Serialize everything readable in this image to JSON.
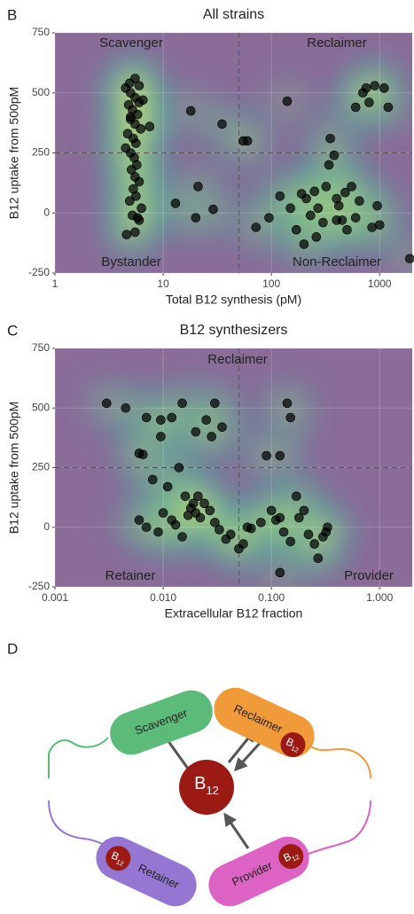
{
  "chart_data": [
    {
      "type": "scatter",
      "panel": "B",
      "title": "All strains",
      "x_label": "Total B12 synthesis (pM)",
      "y_label": "B12 uptake from 500pM",
      "xlog": true,
      "xlim": [
        1,
        2000
      ],
      "xticks": [
        1,
        10,
        100,
        1000
      ],
      "ylim": [
        -250,
        750
      ],
      "yticks": [
        -250,
        0,
        250,
        500,
        750
      ],
      "vline": 50,
      "hline": 250,
      "color": "#000000",
      "quadrant_labels": [
        "Scavenger",
        "Reclaimer",
        "Bystander",
        "Non-Reclaimer"
      ],
      "x": [
        4.5,
        5,
        5.5,
        6,
        4.8,
        5.2,
        5.8,
        5,
        5.5,
        6.2,
        4.7,
        5.3,
        5.6,
        4.5,
        5,
        5.4,
        5.7,
        5.1,
        5.5,
        6,
        5.3,
        5.6,
        4.9,
        6.3,
        5.2,
        5.8,
        6,
        5.5,
        4.6,
        5,
        6,
        5.5,
        4.9,
        6.5,
        7.5,
        13,
        18,
        20,
        21,
        29,
        35,
        55,
        60,
        72,
        95,
        120,
        140,
        150,
        170,
        190,
        210,
        230,
        250,
        260,
        270,
        300,
        320,
        340,
        350,
        380,
        400,
        420,
        450,
        480,
        500,
        550,
        600,
        650,
        700,
        750,
        800,
        850,
        900,
        950,
        1000,
        1100,
        1200,
        1900,
        600,
        200,
        400
      ],
      "y": [
        520,
        500,
        480,
        460,
        450,
        430,
        410,
        390,
        370,
        350,
        330,
        310,
        290,
        270,
        250,
        230,
        200,
        180,
        150,
        130,
        100,
        70,
        50,
        20,
        -10,
        -20,
        -30,
        -80,
        -90,
        400,
        530,
        560,
        540,
        470,
        360,
        40,
        425,
        -20,
        110,
        15,
        370,
        300,
        300,
        -60,
        -20,
        70,
        465,
        20,
        -70,
        80,
        60,
        -10,
        90,
        -100,
        20,
        -40,
        110,
        200,
        310,
        240,
        60,
        30,
        -30,
        85,
        -70,
        110,
        -20,
        50,
        500,
        520,
        460,
        -60,
        530,
        30,
        -50,
        520,
        440,
        -190,
        440,
        -130,
        -30
      ]
    },
    {
      "type": "scatter",
      "panel": "C",
      "title": "B12 synthesizers",
      "x_label": "Extracellular B12 fraction",
      "y_label": "B12 uptake from 500pM",
      "xlog": true,
      "xlim": [
        0.001,
        2
      ],
      "xticks": [
        0.001,
        {
          "value": 0.01,
          "label": "0.010"
        },
        {
          "value": 0.1,
          "label": "0.100"
        },
        {
          "value": 1,
          "label": "1.000"
        }
      ],
      "ylim": [
        -250,
        750
      ],
      "yticks": [
        -250,
        0,
        250,
        500,
        750
      ],
      "vline": 0.05,
      "hline": 250,
      "color": "#000000",
      "quadrant_labels": [
        "Reclaimer",
        "Retainer",
        "Provider"
      ],
      "x": [
        0.003,
        0.0045,
        0.007,
        0.0095,
        0.012,
        0.015,
        0.02,
        0.025,
        0.03,
        0.035,
        0.028,
        0.0095,
        0.006,
        0.0065,
        0.008,
        0.011,
        0.014,
        0.016,
        0.018,
        0.02,
        0.022,
        0.024,
        0.027,
        0.03,
        0.033,
        0.038,
        0.042,
        0.05,
        0.055,
        0.065,
        0.006,
        0.007,
        0.009,
        0.01,
        0.012,
        0.013,
        0.015,
        0.017,
        0.019,
        0.021,
        0.09,
        0.12,
        0.14,
        0.15,
        0.1,
        0.11,
        0.12,
        0.13,
        0.15,
        0.17,
        0.18,
        0.2,
        0.22,
        0.25,
        0.27,
        0.3,
        0.33,
        0.32,
        0.12,
        0.06,
        0.08
      ],
      "y": [
        520,
        500,
        460,
        450,
        460,
        520,
        400,
        450,
        520,
        420,
        380,
        380,
        310,
        305,
        200,
        170,
        250,
        130,
        80,
        60,
        40,
        100,
        70,
        20,
        -10,
        -50,
        -30,
        -90,
        -70,
        -5,
        30,
        0,
        -20,
        60,
        30,
        10,
        -40,
        50,
        100,
        130,
        300,
        300,
        520,
        460,
        70,
        30,
        40,
        -20,
        -60,
        130,
        40,
        70,
        -30,
        -70,
        -130,
        -40,
        0,
        -20,
        -190,
        0,
        20
      ]
    }
  ],
  "diagram": {
    "panel": "D",
    "center": {
      "label": "B",
      "subscript": "12"
    },
    "cells": [
      {
        "label": "Scavenger",
        "color": "#5dbb7a"
      },
      {
        "label": "Reclaimer",
        "color": "#f19a3a"
      },
      {
        "label": "Retainer",
        "color": "#9577d3"
      },
      {
        "label": "Provider",
        "color": "#dc62c3"
      }
    ]
  }
}
